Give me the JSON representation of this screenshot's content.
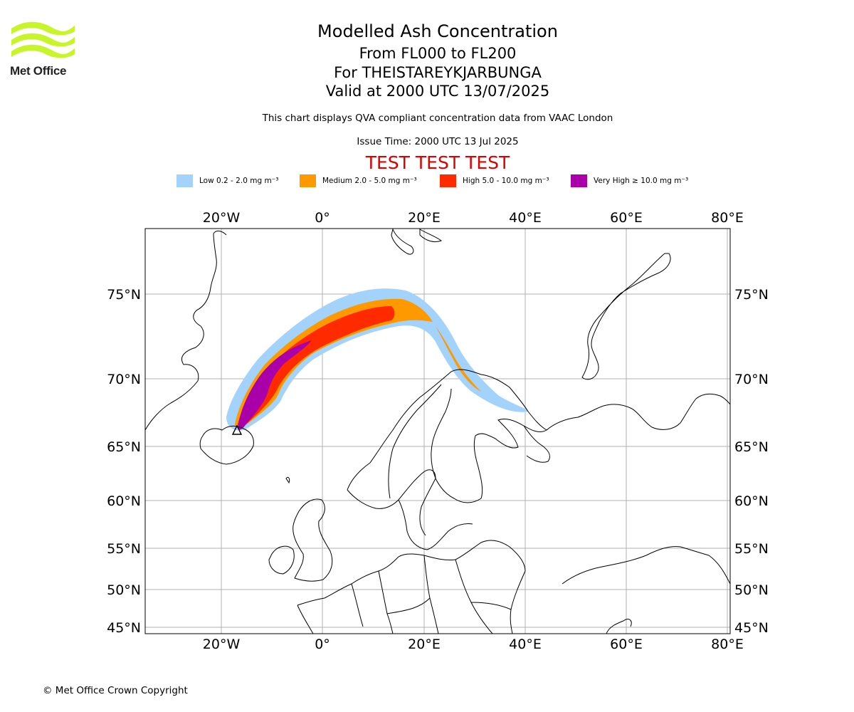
{
  "header": {
    "logo_text": "Met Office",
    "title_lines": [
      "Modelled Ash Concentration",
      "From FL000 to FL200",
      "For THEISTAREYKJARBUNGA",
      "Valid at 2000 UTC 13/07/2025"
    ],
    "qva_note": "This chart displays QVA compliant concentration data from VAAC London",
    "issue_time": "Issue Time: 2000 UTC 13 Jul 2025",
    "test_banner": "TEST TEST TEST"
  },
  "legend": [
    {
      "label": "Low 0.2 - 2.0 mg m⁻³",
      "color": "#a3d3fb"
    },
    {
      "label": "Medium 2.0 - 5.0 mg m⁻³",
      "color": "#ff9900"
    },
    {
      "label": "High 5.0 - 10.0 mg m⁻³",
      "color": "#ff2a00"
    },
    {
      "label": "Very High ≥ 10.0 mg m⁻³",
      "color": "#aa00aa"
    }
  ],
  "map": {
    "lon_ticks": [
      "20°W",
      "0°",
      "20°E",
      "40°E",
      "60°E",
      "80°E"
    ],
    "lat_ticks": [
      "75°N",
      "70°N",
      "65°N",
      "60°N",
      "55°N",
      "50°N",
      "45°N"
    ],
    "gridlines": true,
    "volcano_marker": "triangle-icon"
  },
  "footer": {
    "copyright": "© Met Office Crown Copyright"
  }
}
